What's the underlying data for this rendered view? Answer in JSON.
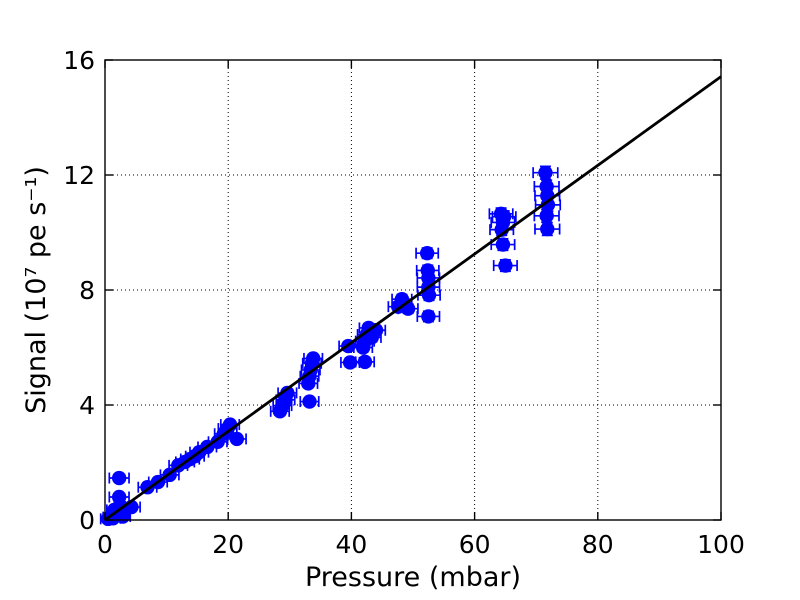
{
  "figure": {
    "background": "#ffffff",
    "title": ""
  },
  "chart_data": {
    "type": "scatter",
    "title": "",
    "xlabel": "Pressure (mbar)",
    "ylabel": "Signal (10⁷ pe s⁻¹)",
    "xlim": [
      0,
      100
    ],
    "ylim": [
      0,
      16
    ],
    "xticks": [
      0,
      20,
      40,
      60,
      80,
      100
    ],
    "yticks": [
      0,
      4,
      8,
      12,
      16
    ],
    "grid": {
      "visible": true,
      "style": "dotted",
      "color": "#000000"
    },
    "legend": null,
    "marker": {
      "shape": "circle",
      "color": "#0000ff"
    },
    "fit_line": {
      "type": "linear",
      "slope": 0.1542,
      "intercept": 0.0,
      "x_start": 0,
      "x_end": 100,
      "color": "#000000"
    },
    "point_format": [
      "pressure_mbar",
      "signal_1e7_pe_per_s",
      "xerr_mbar",
      "yerr_1e7_pe_per_s"
    ],
    "points": [
      [
        0.5,
        0.04,
        1.2,
        0.08
      ],
      [
        0.9,
        0.1,
        1.2,
        0.08
      ],
      [
        1.3,
        0.06,
        1.2,
        0.08
      ],
      [
        1.5,
        0.35,
        1.2,
        0.08
      ],
      [
        1.7,
        0.15,
        1.2,
        0.08
      ],
      [
        2.1,
        0.22,
        1.2,
        0.08
      ],
      [
        2.5,
        0.3,
        1.2,
        0.08
      ],
      [
        2.9,
        0.12,
        1.2,
        0.08
      ],
      [
        2.7,
        0.45,
        1.2,
        0.08
      ],
      [
        2.3,
        1.46,
        1.6,
        0.1
      ],
      [
        2.3,
        0.8,
        1.6,
        0.1
      ],
      [
        4.3,
        0.45,
        1.4,
        0.1
      ],
      [
        6.9,
        1.14,
        1.5,
        0.1
      ],
      [
        8.6,
        1.32,
        1.5,
        0.1
      ],
      [
        10.5,
        1.57,
        1.5,
        0.1
      ],
      [
        11.9,
        1.9,
        1.5,
        0.1
      ],
      [
        13.0,
        2.02,
        1.5,
        0.1
      ],
      [
        13.8,
        2.12,
        1.5,
        0.1
      ],
      [
        14.6,
        2.22,
        1.5,
        0.1
      ],
      [
        15.3,
        2.36,
        1.5,
        0.1
      ],
      [
        16.6,
        2.54,
        1.5,
        0.1
      ],
      [
        18.3,
        2.72,
        1.5,
        0.1
      ],
      [
        19.3,
        3.0,
        1.5,
        0.1
      ],
      [
        19.9,
        3.18,
        1.5,
        0.1
      ],
      [
        20.3,
        3.32,
        1.5,
        0.1
      ],
      [
        21.4,
        2.82,
        1.5,
        0.1
      ],
      [
        28.4,
        3.78,
        1.5,
        0.13
      ],
      [
        28.8,
        3.98,
        1.5,
        0.13
      ],
      [
        29.3,
        4.18,
        1.5,
        0.13
      ],
      [
        29.6,
        4.42,
        1.5,
        0.13
      ],
      [
        33.2,
        4.12,
        1.5,
        0.13
      ],
      [
        33.0,
        4.75,
        1.5,
        0.13
      ],
      [
        33.2,
        5.0,
        1.5,
        0.13
      ],
      [
        33.4,
        5.22,
        1.5,
        0.13
      ],
      [
        33.6,
        5.45,
        1.5,
        0.13
      ],
      [
        33.8,
        5.62,
        1.5,
        0.13
      ],
      [
        39.5,
        6.05,
        1.5,
        0.15
      ],
      [
        39.8,
        5.48,
        1.5,
        0.15
      ],
      [
        41.9,
        6.0,
        1.5,
        0.15
      ],
      [
        42.2,
        6.22,
        1.5,
        0.15
      ],
      [
        42.5,
        6.45,
        1.5,
        0.15
      ],
      [
        42.8,
        6.68,
        1.5,
        0.15
      ],
      [
        43.3,
        6.35,
        1.5,
        0.15
      ],
      [
        44.0,
        6.6,
        1.5,
        0.15
      ],
      [
        42.2,
        5.5,
        1.5,
        0.15
      ],
      [
        47.6,
        7.42,
        1.6,
        0.16
      ],
      [
        48.2,
        7.68,
        1.6,
        0.16
      ],
      [
        49.2,
        7.35,
        1.6,
        0.16
      ],
      [
        52.3,
        9.28,
        1.8,
        0.18
      ],
      [
        52.4,
        8.68,
        1.8,
        0.18
      ],
      [
        52.5,
        8.42,
        1.8,
        0.18
      ],
      [
        52.5,
        8.1,
        1.8,
        0.18
      ],
      [
        52.6,
        7.82,
        1.8,
        0.18
      ],
      [
        52.5,
        7.08,
        1.8,
        0.18
      ],
      [
        64.3,
        10.65,
        1.9,
        0.2
      ],
      [
        64.8,
        10.55,
        1.9,
        0.2
      ],
      [
        64.6,
        10.35,
        1.9,
        0.2
      ],
      [
        64.4,
        10.1,
        1.9,
        0.2
      ],
      [
        64.6,
        9.58,
        1.9,
        0.2
      ],
      [
        65.0,
        8.85,
        1.9,
        0.2
      ],
      [
        71.5,
        12.08,
        2.0,
        0.22
      ],
      [
        71.7,
        11.6,
        2.0,
        0.22
      ],
      [
        71.8,
        11.28,
        2.0,
        0.22
      ],
      [
        71.9,
        10.96,
        2.0,
        0.22
      ],
      [
        71.7,
        10.58,
        2.0,
        0.22
      ],
      [
        71.8,
        10.12,
        2.0,
        0.22
      ]
    ]
  }
}
